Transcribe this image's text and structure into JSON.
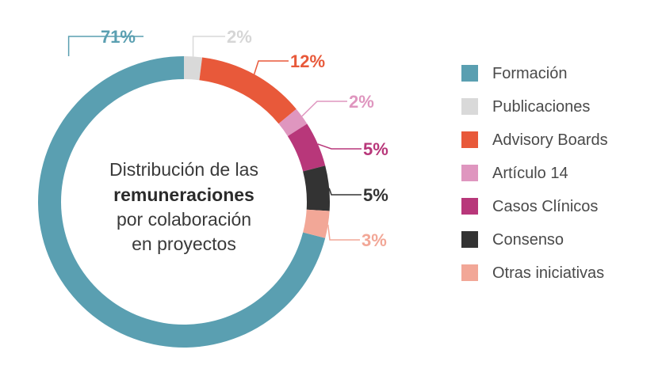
{
  "chart_data": {
    "type": "pie",
    "center_label": {
      "line1": "Distribución de las",
      "line2": "remuneraciones",
      "line3": "por colaboración",
      "line4": "en proyectos"
    },
    "slices": [
      {
        "name": "Formación",
        "value": 71,
        "label": "71%",
        "color": "#5a9fb1"
      },
      {
        "name": "Publicaciones",
        "value": 2,
        "label": "2%",
        "color": "#d9d9d9"
      },
      {
        "name": "Advisory Boards",
        "value": 12,
        "label": "12%",
        "color": "#e8593a"
      },
      {
        "name": "Artículo 14",
        "value": 2,
        "label": "2%",
        "color": "#df96bf"
      },
      {
        "name": "Casos Clínicos",
        "value": 5,
        "label": "5%",
        "color": "#b8377a"
      },
      {
        "name": "Consenso",
        "value": 5,
        "label": "5%",
        "color": "#333333"
      },
      {
        "name": "Otras iniciativas",
        "value": 3,
        "label": "3%",
        "color": "#f2a797"
      }
    ]
  }
}
